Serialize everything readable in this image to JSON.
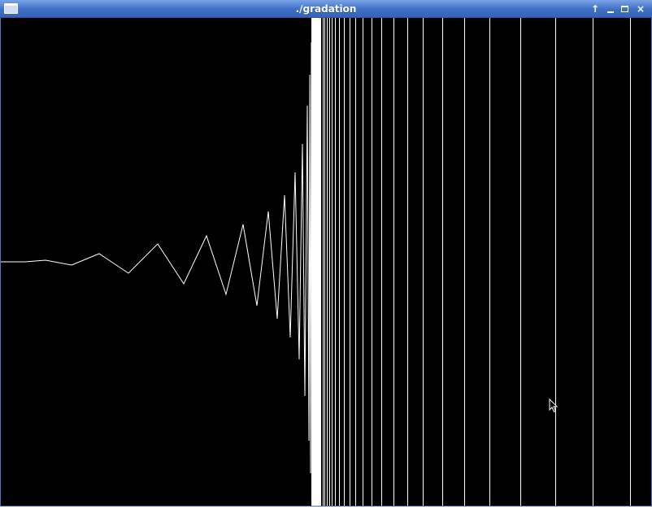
{
  "window": {
    "title": "./gradation",
    "controls": {
      "shade": "↑",
      "minimize": "minimize",
      "maximize": "maximize",
      "close": "×"
    }
  },
  "colors": {
    "titlebar": "#4a78c8",
    "canvas_background": "#000000",
    "stroke": "#ffffff"
  },
  "icons": {
    "window_menu": "window-menu-icon",
    "cursor": "mouse-pointer-icon"
  }
}
